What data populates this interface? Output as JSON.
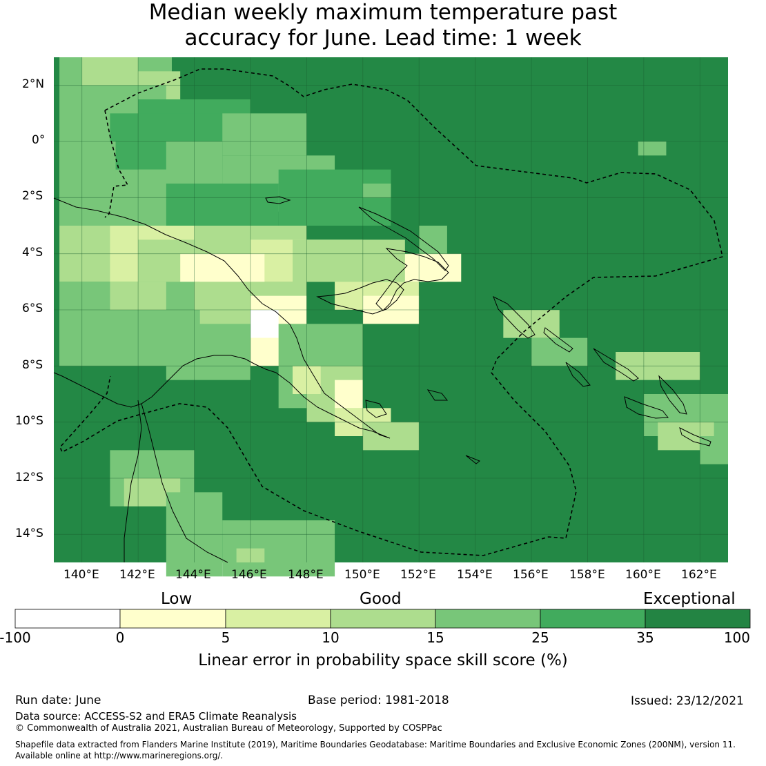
{
  "title": {
    "line1": "Median weekly maximum temperature past",
    "line2": "accuracy for June. Lead time: 1 week"
  },
  "map": {
    "lon_range": [
      139,
      163
    ],
    "lat_range": [
      -15,
      3
    ],
    "lat_ticks": [
      "2°N",
      "0°",
      "2°S",
      "4°S",
      "6°S",
      "8°S",
      "10°S",
      "12°S",
      "14°S"
    ],
    "lon_ticks": [
      "140°E",
      "142°E",
      "144°E",
      "146°E",
      "148°E",
      "150°E",
      "152°E",
      "154°E",
      "156°E",
      "158°E",
      "160°E",
      "162°E"
    ],
    "background_color": "#238845"
  },
  "colorbar": {
    "category_labels": [
      "Low",
      "Good",
      "Exceptional"
    ],
    "tick_labels": [
      "-100",
      "0",
      "5",
      "10",
      "15",
      "25",
      "35",
      "100"
    ],
    "colors": [
      "#ffffff",
      "#ffffcc",
      "#d9f0a3",
      "#addd8e",
      "#78c679",
      "#41ab5d",
      "#238443"
    ],
    "title": "Linear error in probability space skill score (%)"
  },
  "footer": {
    "run_date": "Run date: June",
    "base_period": "Base period: 1981-2018",
    "issued": "Issued: 23/12/2021",
    "data_source": "Data source: ACCESS-S2 and ERA5 Climate Reanalysis",
    "copyright": "© Commonwealth of Australia 2021, Australian Bureau of Meteorology, Supported by COSPPac",
    "shapefile_line1": "Shapefile data extracted from Flanders Marine Institute (2019), Maritime Boundaries Geodatabase: Maritime Boundaries and Exclusive Economic Zones (200NM), version 11.",
    "shapefile_line2": "Available online at http://www.marineregions.org/."
  }
}
